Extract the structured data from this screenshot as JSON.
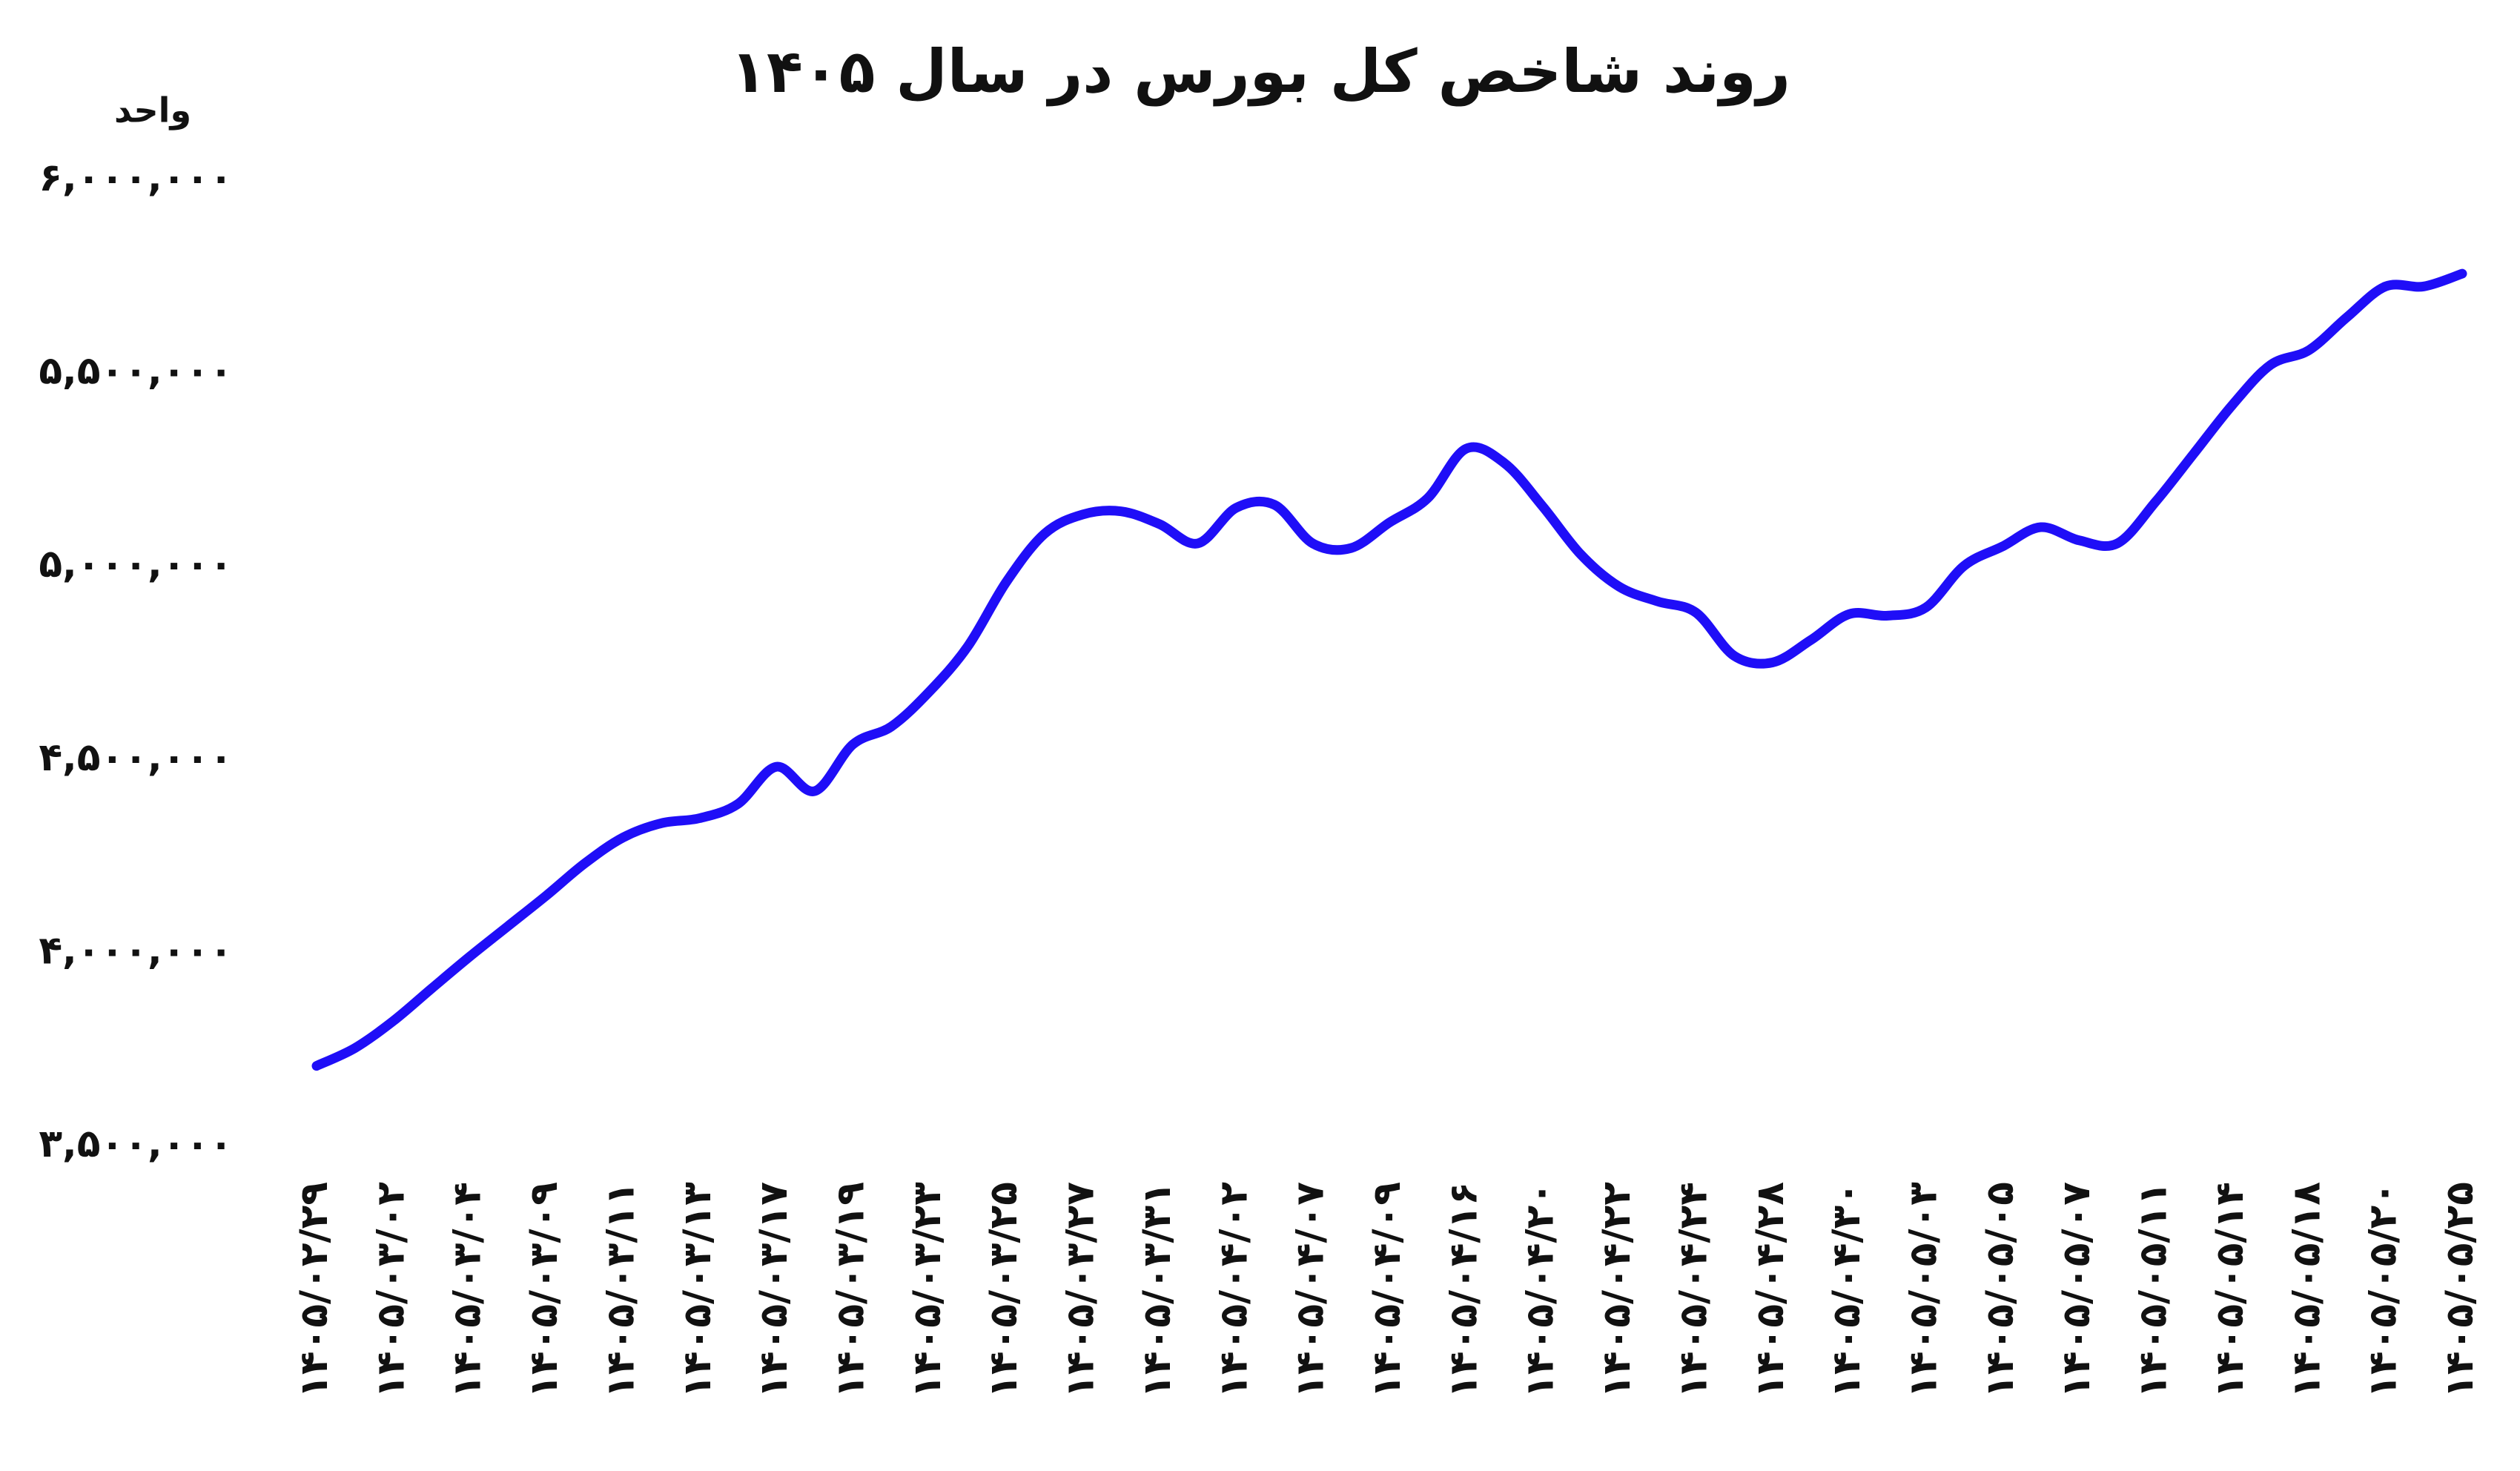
{
  "chart_data": {
    "type": "line",
    "title": "روند شاخص کل بورس در سال ۱۴۰۵",
    "y_label": "واحد",
    "categories": [
      "۱۴۰۵/۰۲/۲۹",
      null,
      "۱۴۰۵/۰۳/۰۲",
      null,
      "۱۴۰۵/۰۳/۰۴",
      null,
      "۱۴۰۵/۰۳/۰۹",
      null,
      "۱۴۰۵/۰۳/۱۱",
      null,
      "۱۴۰۵/۰۳/۱۳",
      null,
      "۱۴۰۵/۰۳/۱۷",
      null,
      "۱۴۰۵/۰۳/۱۹",
      null,
      "۱۴۰۵/۰۳/۲۳",
      null,
      "۱۴۰۵/۰۳/۲۵",
      null,
      "۱۴۰۵/۰۳/۲۷",
      null,
      "۱۴۰۵/۰۳/۳۱",
      null,
      "۱۴۰۵/۰۴/۰۲",
      null,
      "۱۴۰۵/۰۴/۰۷",
      null,
      "۱۴۰۵/۰۴/۰۹",
      null,
      "۱۴۰۵/۰۴/۱۶",
      null,
      "۱۴۰۵/۰۴/۲۰",
      null,
      "۱۴۰۵/۰۴/۲۲",
      null,
      "۱۴۰۵/۰۴/۲۴",
      null,
      "۱۴۰۵/۰۴/۲۸",
      null,
      "۱۴۰۵/۰۴/۳۰",
      null,
      "۱۴۰۵/۰۵/۰۳",
      null,
      "۱۴۰۵/۰۵/۰۵",
      null,
      "۱۴۰۵/۰۵/۰۷",
      null,
      "۱۴۰۵/۰۵/۱۱",
      null,
      "۱۴۰۵/۰۵/۱۴",
      null,
      "۱۴۰۵/۰۵/۱۸",
      null,
      "۱۴۰۵/۰۵/۲۰",
      null,
      "۱۴۰۵/۰۵/۲۵"
    ],
    "values": [
      3708000,
      3754000,
      3824000,
      3908000,
      3991000,
      4070000,
      4149000,
      4232000,
      4299000,
      4336000,
      4349000,
      4386000,
      4482000,
      4419000,
      4540000,
      4586000,
      4677000,
      4794000,
      4960000,
      5085000,
      5135000,
      5143000,
      5110000,
      5060000,
      5152000,
      5160000,
      5060000,
      5048000,
      5114000,
      5177000,
      5305000,
      5268000,
      5156000,
      5031000,
      4948000,
      4910000,
      4881000,
      4769000,
      4752000,
      4810000,
      4877000,
      4873000,
      4894000,
      5002000,
      5052000,
      5102000,
      5068000,
      5060000,
      5168000,
      5293000,
      5418000,
      5522000,
      5560000,
      5646000,
      5725000,
      5725000,
      5758000
    ],
    "color": "#1f0ef7",
    "ylim": [
      3500000,
      6000000
    ],
    "yticks": [
      {
        "value": 3500000,
        "label": "۳,۵۰۰,۰۰۰"
      },
      {
        "value": 4000000,
        "label": "۴,۰۰۰,۰۰۰"
      },
      {
        "value": 4500000,
        "label": "۴,۵۰۰,۰۰۰"
      },
      {
        "value": 5000000,
        "label": "۵,۰۰۰,۰۰۰"
      },
      {
        "value": 5500000,
        "label": "۵,۵۰۰,۰۰۰"
      },
      {
        "value": 6000000,
        "label": "۶,۰۰۰,۰۰۰"
      }
    ],
    "grid": false
  }
}
